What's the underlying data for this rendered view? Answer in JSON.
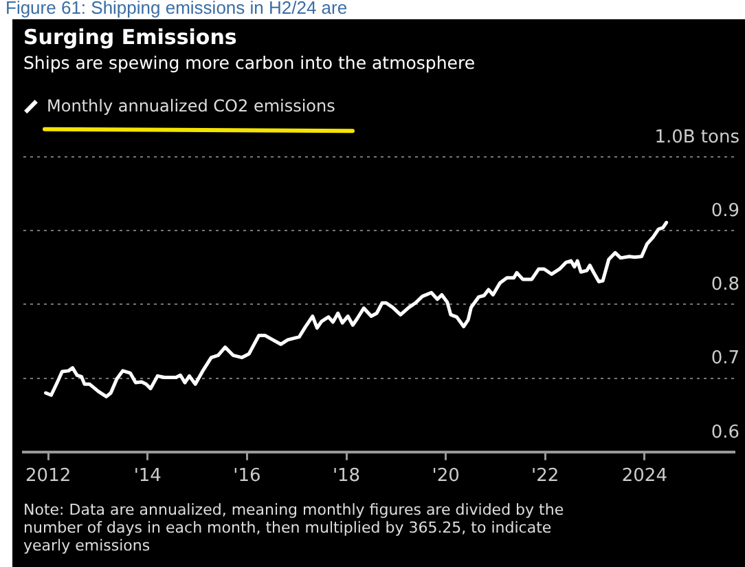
{
  "chart_data": {
    "type": "line",
    "title": "Surging Emissions",
    "subtitle": "Ships are spewing more carbon into the atmosphere",
    "annotations": [
      "Figure 61: Shipping emissions in H2/24 are",
      "Note: Data are annualized, meaning monthly figures are divided by the number of days in each month, then multiplied by 365.25, to indicate yearly emissions"
    ],
    "x": [
      2011.95,
      2012.06,
      2012.18,
      2012.28,
      2012.41,
      2012.49,
      2012.58,
      2012.67,
      2012.73,
      2012.83,
      2013.01,
      2013.17,
      2013.26,
      2013.38,
      2013.5,
      2013.65,
      2013.76,
      2013.88,
      2013.97,
      2014.06,
      2014.2,
      2014.34,
      2014.57,
      2014.66,
      2014.75,
      2014.84,
      2014.96,
      2015.12,
      2015.28,
      2015.42,
      2015.56,
      2015.72,
      2015.9,
      2016.04,
      2016.24,
      2016.36,
      2016.52,
      2016.68,
      2016.82,
      2017.05,
      2017.17,
      2017.32,
      2017.41,
      2017.5,
      2017.64,
      2017.73,
      2017.83,
      2017.92,
      2018.03,
      2018.13,
      2018.22,
      2018.35,
      2018.5,
      2018.61,
      2018.72,
      2018.8,
      2018.93,
      2019.09,
      2019.26,
      2019.39,
      2019.53,
      2019.71,
      2019.83,
      2019.92,
      2020.03,
      2020.1,
      2020.22,
      2020.36,
      2020.45,
      2020.51,
      2020.66,
      2020.77,
      2020.86,
      2020.95,
      2021.09,
      2021.23,
      2021.37,
      2021.43,
      2021.55,
      2021.73,
      2021.87,
      2021.98,
      2022.13,
      2022.29,
      2022.42,
      2022.52,
      2022.59,
      2022.65,
      2022.72,
      2022.84,
      2022.9,
      2022.97,
      2023.08,
      2023.16,
      2023.28,
      2023.41,
      2023.52,
      2023.69,
      2023.8,
      2023.94,
      2024.05,
      2024.17,
      2024.28,
      2024.37,
      2024.44
    ],
    "series": [
      {
        "name": "Monthly annualized CO2 emissions",
        "color": "#ffffff",
        "values": [
          0.68,
          0.677,
          0.694,
          0.709,
          0.71,
          0.714,
          0.704,
          0.702,
          0.692,
          0.692,
          0.682,
          0.675,
          0.68,
          0.699,
          0.71,
          0.707,
          0.694,
          0.695,
          0.692,
          0.686,
          0.703,
          0.701,
          0.701,
          0.704,
          0.694,
          0.703,
          0.692,
          0.711,
          0.728,
          0.731,
          0.742,
          0.731,
          0.728,
          0.733,
          0.758,
          0.758,
          0.752,
          0.746,
          0.752,
          0.756,
          0.769,
          0.784,
          0.768,
          0.777,
          0.783,
          0.776,
          0.788,
          0.775,
          0.784,
          0.772,
          0.781,
          0.795,
          0.784,
          0.788,
          0.802,
          0.802,
          0.796,
          0.786,
          0.796,
          0.802,
          0.811,
          0.816,
          0.807,
          0.813,
          0.803,
          0.786,
          0.783,
          0.77,
          0.779,
          0.796,
          0.81,
          0.812,
          0.82,
          0.813,
          0.829,
          0.836,
          0.836,
          0.843,
          0.834,
          0.834,
          0.848,
          0.848,
          0.841,
          0.848,
          0.857,
          0.859,
          0.851,
          0.859,
          0.844,
          0.846,
          0.853,
          0.844,
          0.831,
          0.832,
          0.861,
          0.87,
          0.863,
          0.865,
          0.864,
          0.865,
          0.882,
          0.891,
          0.902,
          0.904,
          0.911
        ]
      }
    ],
    "xlim": [
      2011.5,
      2025.8
    ],
    "xticks": [
      {
        "value": 2012,
        "label": "2012"
      },
      {
        "value": 2014,
        "label": "'14"
      },
      {
        "value": 2016,
        "label": "'16"
      },
      {
        "value": 2018,
        "label": "'18"
      },
      {
        "value": 2020,
        "label": "'20"
      },
      {
        "value": 2022,
        "label": "'22"
      },
      {
        "value": 2024,
        "label": "2024"
      }
    ],
    "ylim": [
      0.6,
      1.0
    ],
    "yticks": [
      0.6,
      0.7,
      0.8,
      0.9,
      {
        "value": 1.0,
        "label": "1.0B tons"
      }
    ],
    "grid": "y",
    "legend": "top left",
    "marker": "none",
    "line_style": "solid"
  }
}
